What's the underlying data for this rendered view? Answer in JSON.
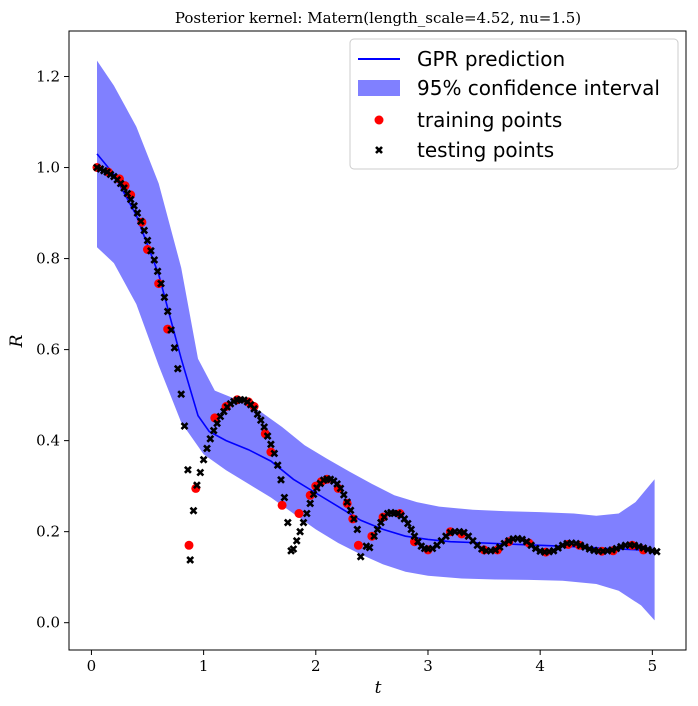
{
  "chart_data": {
    "type": "scatter",
    "title": "Posterior kernel: Matern(length_scale=4.52, nu=1.5)",
    "xlabel": "t",
    "ylabel": "R",
    "xlim": [
      -0.2,
      5.3
    ],
    "ylim": [
      -0.06,
      1.3
    ],
    "x_ticks": [
      0,
      1,
      2,
      3,
      4,
      5
    ],
    "y_ticks": [
      0.0,
      0.2,
      0.4,
      0.6,
      0.8,
      1.0,
      1.2
    ],
    "y_tick_labels": [
      "0.0",
      "0.2",
      "0.4",
      "0.6",
      "0.8",
      "1.0",
      "1.2"
    ],
    "grid": false,
    "legend": {
      "position": "top-right",
      "entries": [
        {
          "label": "GPR prediction",
          "kind": "line",
          "color": "#0000ff"
        },
        {
          "label": "95% confidence interval",
          "kind": "band",
          "color": "#8080ff"
        },
        {
          "label": "training points",
          "kind": "dot",
          "color": "#ff0000"
        },
        {
          "label": "testing points",
          "kind": "cross",
          "color": "#000000"
        }
      ]
    },
    "series": [
      {
        "name": "GPR prediction",
        "kind": "line",
        "color": "#0000ff",
        "points": [
          [
            0.05,
            1.03
          ],
          [
            0.2,
            0.985
          ],
          [
            0.4,
            0.895
          ],
          [
            0.6,
            0.765
          ],
          [
            0.8,
            0.58
          ],
          [
            0.95,
            0.455
          ],
          [
            1.05,
            0.42
          ],
          [
            1.2,
            0.4
          ],
          [
            1.4,
            0.38
          ],
          [
            1.6,
            0.355
          ],
          [
            1.8,
            0.315
          ],
          [
            2.0,
            0.285
          ],
          [
            2.2,
            0.255
          ],
          [
            2.4,
            0.225
          ],
          [
            2.6,
            0.205
          ],
          [
            2.8,
            0.19
          ],
          [
            3.0,
            0.183
          ],
          [
            3.2,
            0.178
          ],
          [
            3.5,
            0.175
          ],
          [
            3.8,
            0.172
          ],
          [
            4.0,
            0.17
          ],
          [
            4.3,
            0.167
          ],
          [
            4.6,
            0.163
          ],
          [
            4.8,
            0.161
          ],
          [
            5.02,
            0.158
          ]
        ]
      },
      {
        "name": "95% confidence interval",
        "kind": "band",
        "color": "#8080ff",
        "lower": [
          [
            0.05,
            0.825
          ],
          [
            0.2,
            0.79
          ],
          [
            0.4,
            0.7
          ],
          [
            0.6,
            0.565
          ],
          [
            0.8,
            0.44
          ],
          [
            1.0,
            0.37
          ],
          [
            1.2,
            0.335
          ],
          [
            1.4,
            0.305
          ],
          [
            1.6,
            0.275
          ],
          [
            1.8,
            0.24
          ],
          [
            2.0,
            0.205
          ],
          [
            2.2,
            0.175
          ],
          [
            2.4,
            0.15
          ],
          [
            2.6,
            0.128
          ],
          [
            2.8,
            0.112
          ],
          [
            3.0,
            0.103
          ],
          [
            3.3,
            0.097
          ],
          [
            3.6,
            0.095
          ],
          [
            3.9,
            0.094
          ],
          [
            4.2,
            0.092
          ],
          [
            4.5,
            0.085
          ],
          [
            4.7,
            0.07
          ],
          [
            4.9,
            0.038
          ],
          [
            5.02,
            0.005
          ]
        ],
        "upper": [
          [
            0.05,
            1.235
          ],
          [
            0.2,
            1.18
          ],
          [
            0.4,
            1.09
          ],
          [
            0.6,
            0.965
          ],
          [
            0.8,
            0.78
          ],
          [
            0.95,
            0.58
          ],
          [
            1.1,
            0.51
          ],
          [
            1.3,
            0.49
          ],
          [
            1.5,
            0.465
          ],
          [
            1.7,
            0.43
          ],
          [
            1.9,
            0.39
          ],
          [
            2.1,
            0.36
          ],
          [
            2.3,
            0.332
          ],
          [
            2.5,
            0.305
          ],
          [
            2.7,
            0.28
          ],
          [
            2.9,
            0.265
          ],
          [
            3.1,
            0.255
          ],
          [
            3.4,
            0.248
          ],
          [
            3.7,
            0.245
          ],
          [
            4.0,
            0.243
          ],
          [
            4.3,
            0.24
          ],
          [
            4.5,
            0.235
          ],
          [
            4.7,
            0.24
          ],
          [
            4.85,
            0.265
          ],
          [
            5.02,
            0.315
          ]
        ]
      },
      {
        "name": "training points",
        "kind": "dot",
        "color": "#ff0000",
        "points": [
          [
            0.05,
            1.0
          ],
          [
            0.15,
            0.99
          ],
          [
            0.25,
            0.975
          ],
          [
            0.3,
            0.96
          ],
          [
            0.35,
            0.94
          ],
          [
            0.45,
            0.88
          ],
          [
            0.5,
            0.82
          ],
          [
            0.6,
            0.745
          ],
          [
            0.68,
            0.645
          ],
          [
            0.87,
            0.17
          ],
          [
            0.93,
            0.295
          ],
          [
            1.1,
            0.45
          ],
          [
            1.2,
            0.475
          ],
          [
            1.3,
            0.49
          ],
          [
            1.4,
            0.485
          ],
          [
            1.45,
            0.475
          ],
          [
            1.55,
            0.415
          ],
          [
            1.6,
            0.375
          ],
          [
            1.7,
            0.258
          ],
          [
            1.85,
            0.24
          ],
          [
            1.95,
            0.28
          ],
          [
            2.0,
            0.3
          ],
          [
            2.05,
            0.31
          ],
          [
            2.1,
            0.315
          ],
          [
            2.2,
            0.295
          ],
          [
            2.28,
            0.262
          ],
          [
            2.33,
            0.228
          ],
          [
            2.38,
            0.17
          ],
          [
            2.5,
            0.19
          ],
          [
            2.6,
            0.232
          ],
          [
            2.75,
            0.24
          ],
          [
            2.88,
            0.178
          ],
          [
            3.0,
            0.16
          ],
          [
            3.2,
            0.2
          ],
          [
            3.3,
            0.195
          ],
          [
            3.5,
            0.16
          ],
          [
            3.62,
            0.16
          ],
          [
            3.72,
            0.178
          ],
          [
            3.9,
            0.175
          ],
          [
            4.05,
            0.155
          ],
          [
            4.25,
            0.172
          ],
          [
            4.35,
            0.17
          ],
          [
            4.55,
            0.157
          ],
          [
            4.65,
            0.158
          ],
          [
            4.82,
            0.17
          ],
          [
            4.92,
            0.16
          ]
        ]
      },
      {
        "name": "testing points",
        "kind": "cross",
        "color": "#000000",
        "points": [
          [
            0.05,
            1.0
          ],
          [
            0.08,
            0.997
          ],
          [
            0.11,
            0.993
          ],
          [
            0.14,
            0.99
          ],
          [
            0.17,
            0.985
          ],
          [
            0.2,
            0.98
          ],
          [
            0.23,
            0.973
          ],
          [
            0.26,
            0.965
          ],
          [
            0.29,
            0.955
          ],
          [
            0.32,
            0.943
          ],
          [
            0.35,
            0.93
          ],
          [
            0.38,
            0.916
          ],
          [
            0.41,
            0.9
          ],
          [
            0.44,
            0.882
          ],
          [
            0.47,
            0.862
          ],
          [
            0.5,
            0.84
          ],
          [
            0.53,
            0.817
          ],
          [
            0.56,
            0.797
          ],
          [
            0.59,
            0.772
          ],
          [
            0.62,
            0.745
          ],
          [
            0.65,
            0.715
          ],
          [
            0.68,
            0.684
          ],
          [
            0.71,
            0.643
          ],
          [
            0.74,
            0.604
          ],
          [
            0.77,
            0.558
          ],
          [
            0.8,
            0.502
          ],
          [
            0.83,
            0.432
          ],
          [
            0.86,
            0.336
          ],
          [
            0.88,
            0.138
          ],
          [
            0.91,
            0.246
          ],
          [
            0.94,
            0.302
          ],
          [
            0.97,
            0.33
          ],
          [
            1.0,
            0.358
          ],
          [
            1.03,
            0.383
          ],
          [
            1.06,
            0.404
          ],
          [
            1.09,
            0.422
          ],
          [
            1.12,
            0.438
          ],
          [
            1.15,
            0.453
          ],
          [
            1.18,
            0.464
          ],
          [
            1.21,
            0.474
          ],
          [
            1.24,
            0.481
          ],
          [
            1.27,
            0.486
          ],
          [
            1.3,
            0.489
          ],
          [
            1.33,
            0.49
          ],
          [
            1.36,
            0.489
          ],
          [
            1.39,
            0.485
          ],
          [
            1.42,
            0.479
          ],
          [
            1.45,
            0.47
          ],
          [
            1.48,
            0.458
          ],
          [
            1.51,
            0.445
          ],
          [
            1.54,
            0.43
          ],
          [
            1.57,
            0.41
          ],
          [
            1.6,
            0.392
          ],
          [
            1.63,
            0.372
          ],
          [
            1.66,
            0.346
          ],
          [
            1.69,
            0.314
          ],
          [
            1.72,
            0.275
          ],
          [
            1.75,
            0.22
          ],
          [
            1.78,
            0.158
          ],
          [
            1.8,
            0.162
          ],
          [
            1.83,
            0.18
          ],
          [
            1.86,
            0.2
          ],
          [
            1.89,
            0.22
          ],
          [
            1.92,
            0.24
          ],
          [
            1.95,
            0.262
          ],
          [
            1.98,
            0.282
          ],
          [
            2.01,
            0.296
          ],
          [
            2.04,
            0.306
          ],
          [
            2.07,
            0.313
          ],
          [
            2.1,
            0.316
          ],
          [
            2.13,
            0.315
          ],
          [
            2.16,
            0.311
          ],
          [
            2.19,
            0.305
          ],
          [
            2.22,
            0.295
          ],
          [
            2.25,
            0.281
          ],
          [
            2.28,
            0.265
          ],
          [
            2.31,
            0.247
          ],
          [
            2.34,
            0.228
          ],
          [
            2.37,
            0.205
          ],
          [
            2.4,
            0.145
          ],
          [
            2.45,
            0.168
          ],
          [
            2.48,
            0.165
          ],
          [
            2.52,
            0.19
          ],
          [
            2.55,
            0.205
          ],
          [
            2.58,
            0.22
          ],
          [
            2.61,
            0.232
          ],
          [
            2.64,
            0.24
          ],
          [
            2.67,
            0.242
          ],
          [
            2.7,
            0.24
          ],
          [
            2.73,
            0.24
          ],
          [
            2.76,
            0.235
          ],
          [
            2.79,
            0.228
          ],
          [
            2.82,
            0.218
          ],
          [
            2.85,
            0.205
          ],
          [
            2.88,
            0.19
          ],
          [
            2.91,
            0.178
          ],
          [
            2.94,
            0.168
          ],
          [
            2.97,
            0.163
          ],
          [
            3.0,
            0.162
          ],
          [
            3.04,
            0.163
          ],
          [
            3.08,
            0.17
          ],
          [
            3.12,
            0.18
          ],
          [
            3.16,
            0.19
          ],
          [
            3.2,
            0.198
          ],
          [
            3.24,
            0.2
          ],
          [
            3.28,
            0.2
          ],
          [
            3.32,
            0.198
          ],
          [
            3.36,
            0.19
          ],
          [
            3.4,
            0.18
          ],
          [
            3.44,
            0.17
          ],
          [
            3.48,
            0.162
          ],
          [
            3.52,
            0.158
          ],
          [
            3.56,
            0.158
          ],
          [
            3.6,
            0.16
          ],
          [
            3.64,
            0.166
          ],
          [
            3.68,
            0.174
          ],
          [
            3.72,
            0.18
          ],
          [
            3.76,
            0.184
          ],
          [
            3.8,
            0.185
          ],
          [
            3.84,
            0.183
          ],
          [
            3.88,
            0.178
          ],
          [
            3.92,
            0.17
          ],
          [
            3.96,
            0.163
          ],
          [
            4.0,
            0.157
          ],
          [
            4.04,
            0.155
          ],
          [
            4.08,
            0.156
          ],
          [
            4.12,
            0.158
          ],
          [
            4.16,
            0.164
          ],
          [
            4.2,
            0.17
          ],
          [
            4.24,
            0.174
          ],
          [
            4.28,
            0.175
          ],
          [
            4.32,
            0.174
          ],
          [
            4.36,
            0.17
          ],
          [
            4.4,
            0.166
          ],
          [
            4.44,
            0.162
          ],
          [
            4.48,
            0.159
          ],
          [
            4.52,
            0.157
          ],
          [
            4.56,
            0.157
          ],
          [
            4.6,
            0.158
          ],
          [
            4.64,
            0.16
          ],
          [
            4.68,
            0.163
          ],
          [
            4.72,
            0.167
          ],
          [
            4.76,
            0.17
          ],
          [
            4.8,
            0.171
          ],
          [
            4.84,
            0.17
          ],
          [
            4.88,
            0.167
          ],
          [
            4.92,
            0.164
          ],
          [
            4.96,
            0.161
          ],
          [
            5.0,
            0.158
          ],
          [
            5.04,
            0.156
          ]
        ]
      }
    ]
  }
}
